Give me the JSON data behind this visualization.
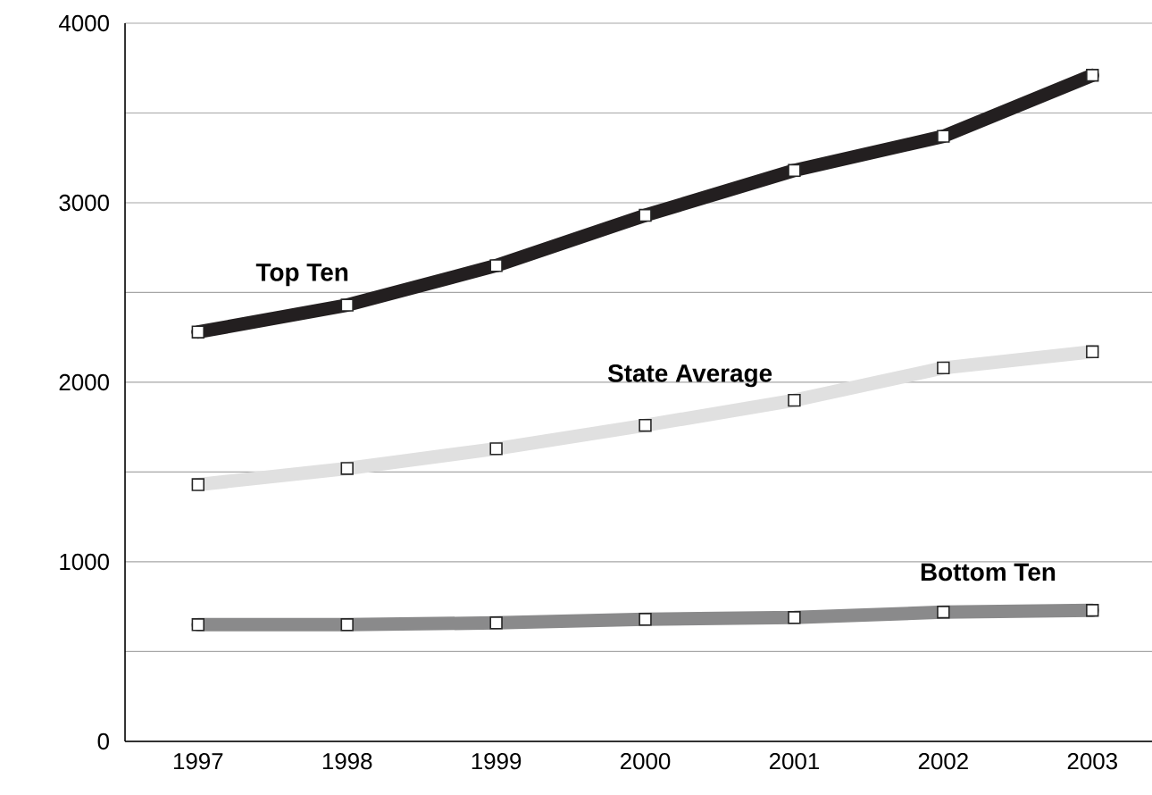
{
  "chart_data": {
    "type": "line",
    "categories": [
      "1997",
      "1998",
      "1999",
      "2000",
      "2001",
      "2002",
      "2003"
    ],
    "series": [
      {
        "name": "Top Ten",
        "color": "#231f20",
        "values": [
          2280,
          2430,
          2650,
          2930,
          3180,
          3370,
          3710
        ]
      },
      {
        "name": "State Average",
        "color": "#e0e0e0",
        "values": [
          1430,
          1520,
          1630,
          1760,
          1900,
          2080,
          2170
        ]
      },
      {
        "name": "Bottom Ten",
        "color": "#8a8a8b",
        "values": [
          650,
          650,
          660,
          680,
          690,
          720,
          730
        ]
      }
    ],
    "ylim": [
      0,
      4000
    ],
    "yticks": [
      0,
      {
        "value": 500,
        "label": null
      },
      1000,
      {
        "value": 1500,
        "label": null
      },
      2000,
      {
        "value": 2500,
        "label": null
      },
      3000,
      {
        "value": 3500,
        "label": null
      },
      4000
    ],
    "grid": "y",
    "marker": "square",
    "line_style": "solid"
  }
}
